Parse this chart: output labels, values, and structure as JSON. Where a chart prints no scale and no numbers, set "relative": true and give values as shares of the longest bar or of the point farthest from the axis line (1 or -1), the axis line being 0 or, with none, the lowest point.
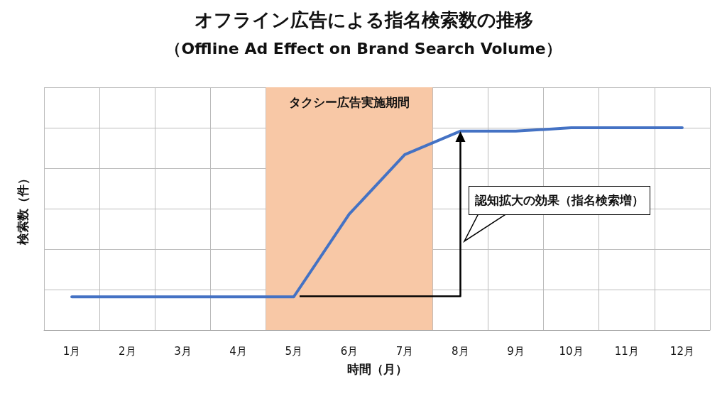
{
  "chart_data": {
    "type": "line",
    "title": "オフライン広告による指名検索数の推移",
    "subtitle": "（Offline Ad Effect on Brand Search Volume）",
    "xlabel": "時間（月）",
    "ylabel": "検索数（件）",
    "relative": true,
    "categories": [
      "1月",
      "2月",
      "3月",
      "4月",
      "5月",
      "6月",
      "7月",
      "8月",
      "9月",
      "10月",
      "11月",
      "12月"
    ],
    "series": [
      {
        "color": "#4472c4",
        "values": [
          0.164,
          0.164,
          0.164,
          0.164,
          0.164,
          0.573,
          0.867,
          0.983,
          0.983,
          1,
          1,
          1
        ]
      }
    ],
    "bands": [
      {
        "axis": "x",
        "from": "5月",
        "to": "7月",
        "label": "タクシー広告実施期間",
        "color": "#f8c8a6"
      }
    ],
    "annotations": [
      "認知拡大の効果（指名検索増）"
    ],
    "grid": true,
    "marker": "none",
    "line_style": "solid"
  }
}
